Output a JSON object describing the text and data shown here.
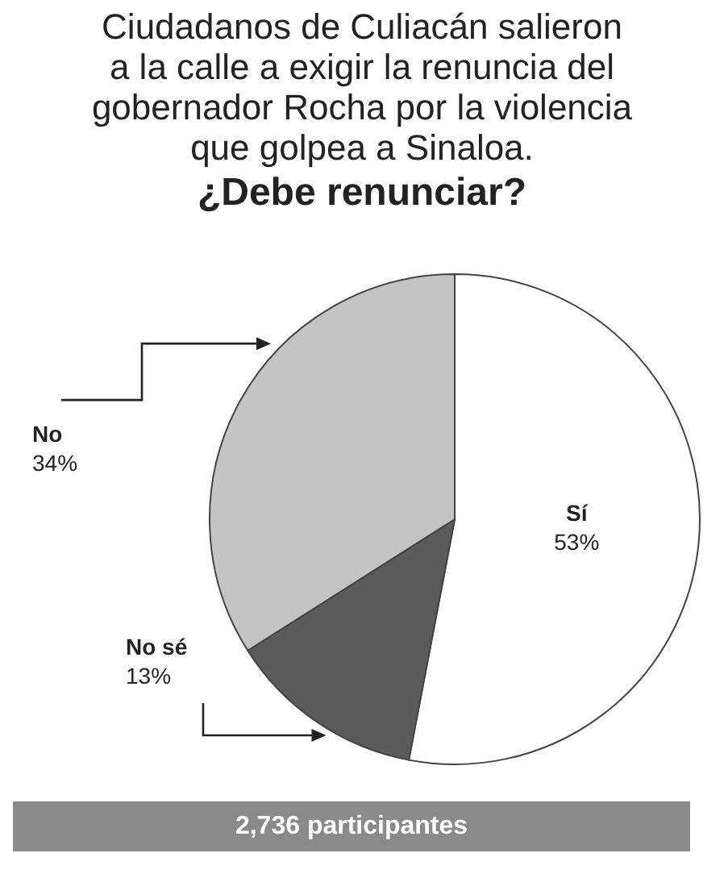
{
  "chart_data": {
    "type": "pie",
    "title": "Ciudadanos de Culiacán salieron\na la calle a exigir la renuncia del\ngobernador Rocha por la violencia\nque golpea a Sinaloa.",
    "subtitle": "¿Debe renunciar?",
    "categories": [
      "Sí",
      "No sé",
      "No"
    ],
    "values": [
      53,
      13,
      34
    ],
    "value_labels": [
      "53%",
      "13%",
      "34%"
    ],
    "colors": [
      "#ffffff",
      "#5b5b5b",
      "#c4c4c4"
    ],
    "annotations": [
      "2,736 participantes"
    ]
  }
}
